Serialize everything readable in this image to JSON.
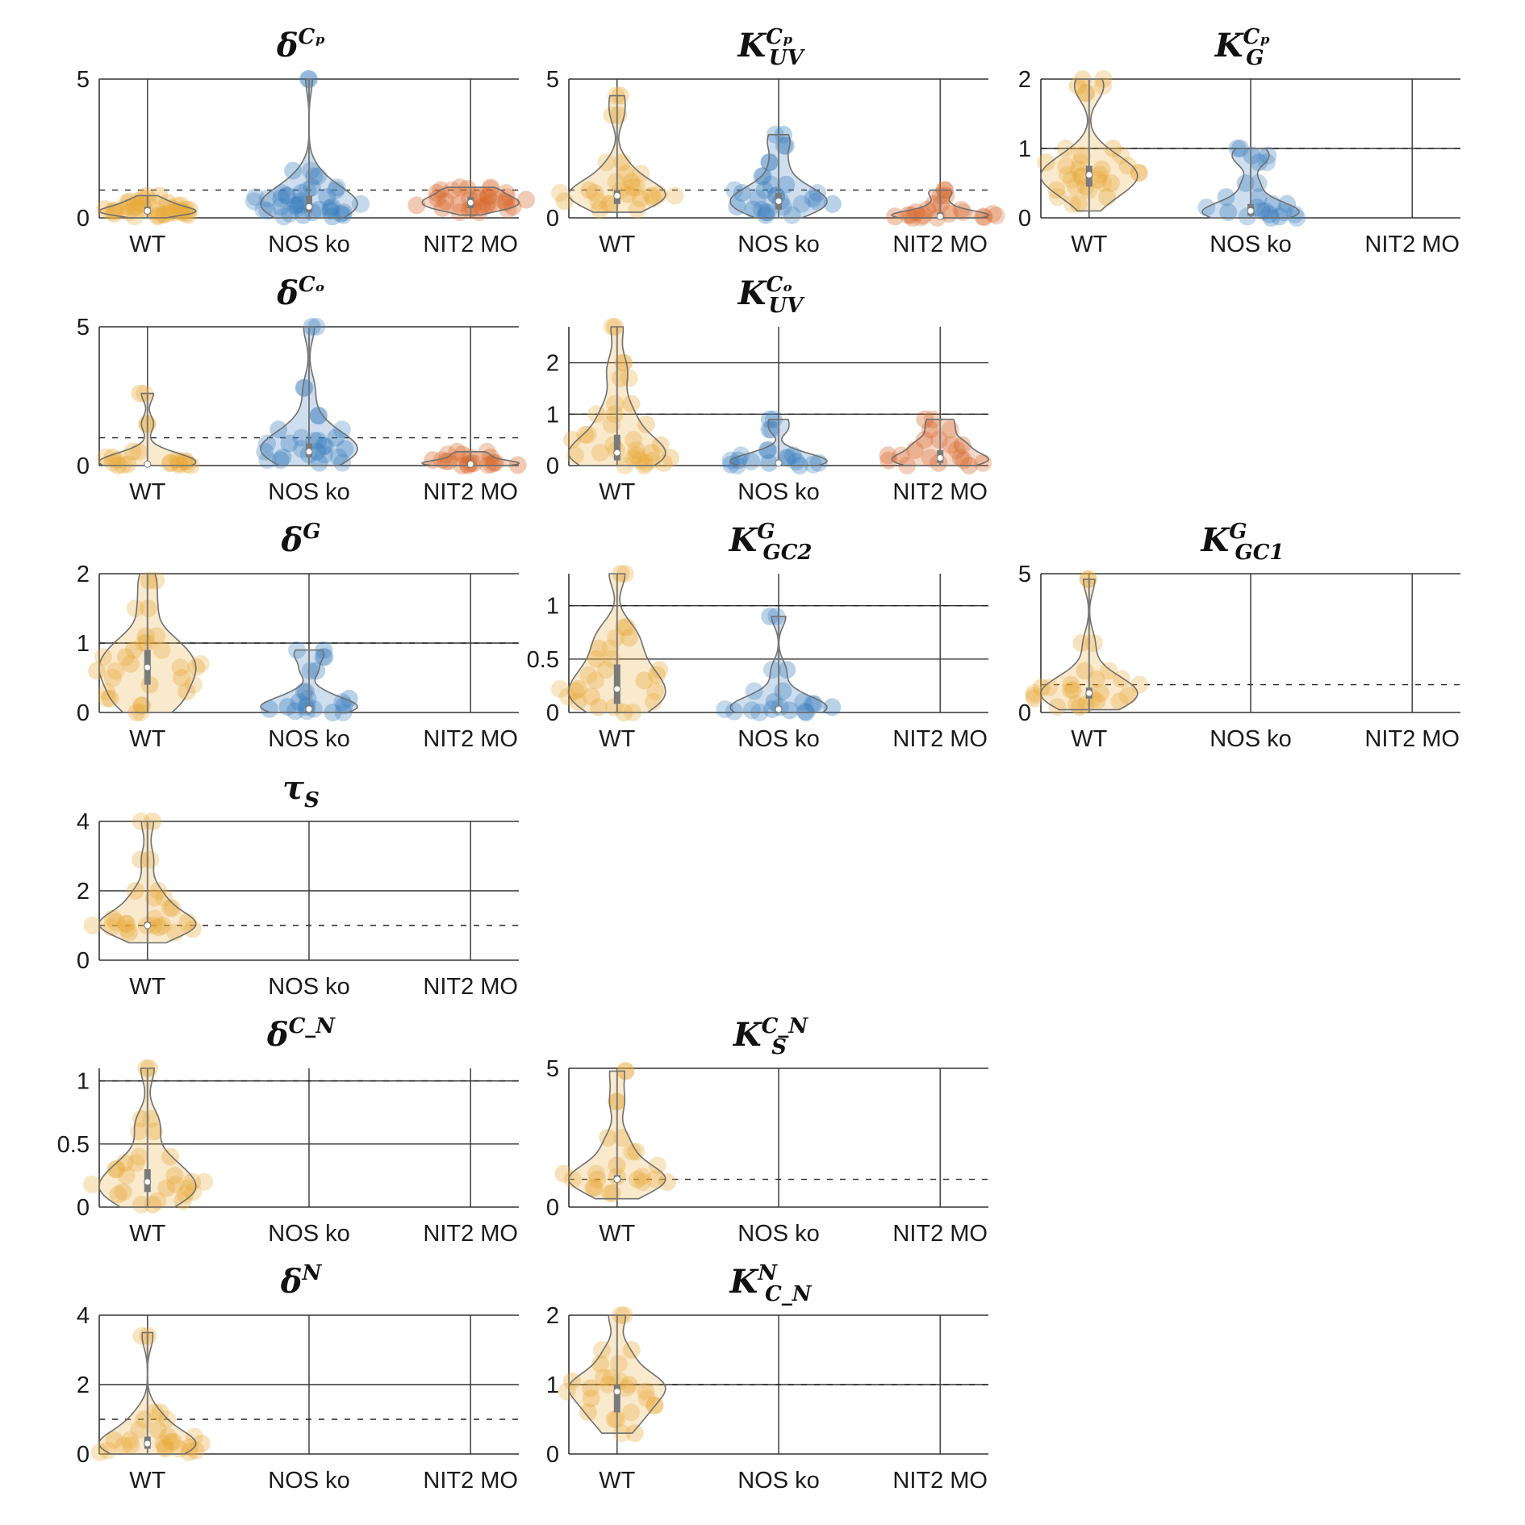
{
  "colors": {
    "WT": "#e8a838",
    "NOS ko": "#3a7dbd",
    "NIT2 MO": "#d8662b",
    "violin_edge": "#707070",
    "grid": "#333333"
  },
  "chart_data": [
    {
      "type": "violin",
      "title": {
        "base": "δ",
        "sup": "Cₚ",
        "sub": ""
      },
      "categories": [
        "WT",
        "NOS ko",
        "NIT2 MO"
      ],
      "yticks": [
        0,
        5
      ],
      "ylim": [
        0,
        5
      ],
      "ref_line": 1,
      "groups": [
        {
          "category": "WT",
          "median": 0.25,
          "q1": 0.15,
          "q3": 0.4,
          "min": 0.0,
          "max": 0.8,
          "points": [
            0.05,
            0.1,
            0.12,
            0.15,
            0.18,
            0.2,
            0.22,
            0.25,
            0.28,
            0.3,
            0.32,
            0.35,
            0.4,
            0.45,
            0.5,
            0.55,
            0.6,
            0.7,
            0.8
          ]
        },
        {
          "category": "NOS ko",
          "median": 0.4,
          "q1": 0.2,
          "q3": 0.8,
          "min": 0.0,
          "max": 5.0,
          "points": [
            0.05,
            0.1,
            0.15,
            0.2,
            0.25,
            0.3,
            0.35,
            0.4,
            0.45,
            0.5,
            0.6,
            0.7,
            0.75,
            0.8,
            0.9,
            1.0,
            1.1,
            1.5,
            1.7,
            5.0
          ]
        },
        {
          "category": "NIT2 MO",
          "median": 0.55,
          "q1": 0.35,
          "q3": 0.75,
          "min": 0.1,
          "max": 1.1,
          "points": [
            0.2,
            0.3,
            0.35,
            0.4,
            0.45,
            0.5,
            0.55,
            0.6,
            0.65,
            0.7,
            0.75,
            0.8,
            0.9,
            1.0,
            1.05,
            1.1
          ]
        }
      ]
    },
    {
      "type": "violin",
      "title": {
        "base": "K",
        "sup": "Cₚ",
        "sub": "UV"
      },
      "categories": [
        "WT",
        "NOS ko",
        "NIT2 MO"
      ],
      "yticks": [
        0,
        5
      ],
      "ylim": [
        0,
        5
      ],
      "ref_line": 1,
      "groups": [
        {
          "category": "WT",
          "median": 0.8,
          "q1": 0.5,
          "q3": 1.0,
          "min": 0.2,
          "max": 4.4,
          "points": [
            0.3,
            0.5,
            0.6,
            0.7,
            0.8,
            0.85,
            0.9,
            1.0,
            1.1,
            1.3,
            1.6,
            2.0,
            3.7,
            4.4
          ]
        },
        {
          "category": "NOS ko",
          "median": 0.6,
          "q1": 0.3,
          "q3": 0.9,
          "min": 0.0,
          "max": 3.0,
          "points": [
            0.1,
            0.2,
            0.3,
            0.4,
            0.5,
            0.6,
            0.7,
            0.8,
            0.9,
            1.0,
            1.2,
            1.5,
            2.0,
            2.6,
            3.0
          ]
        },
        {
          "category": "NIT2 MO",
          "median": 0.05,
          "q1": 0.0,
          "q3": 0.2,
          "min": 0.0,
          "max": 1.0,
          "points": [
            0.0,
            0.02,
            0.05,
            0.08,
            0.1,
            0.15,
            0.2,
            0.3,
            0.5,
            0.8,
            1.0
          ]
        }
      ]
    },
    {
      "type": "violin",
      "title": {
        "base": "K",
        "sup": "Cₚ",
        "sub": "G"
      },
      "categories": [
        "WT",
        "NOS ko",
        "NIT2 MO"
      ],
      "yticks": [
        0,
        1,
        2
      ],
      "ylim": [
        0,
        2
      ],
      "ref_line": 1,
      "groups": [
        {
          "category": "WT",
          "median": 0.62,
          "q1": 0.45,
          "q3": 0.75,
          "min": 0.1,
          "max": 2.0,
          "points": [
            0.2,
            0.3,
            0.4,
            0.45,
            0.5,
            0.55,
            0.6,
            0.62,
            0.65,
            0.7,
            0.75,
            0.8,
            0.9,
            1.0,
            1.8,
            1.9,
            2.0
          ]
        },
        {
          "category": "NOS ko",
          "median": 0.1,
          "q1": 0.03,
          "q3": 0.2,
          "min": 0.0,
          "max": 1.0,
          "points": [
            0.0,
            0.02,
            0.05,
            0.08,
            0.1,
            0.15,
            0.2,
            0.3,
            0.5,
            0.8,
            0.9,
            1.0
          ]
        }
      ]
    },
    {
      "type": "violin",
      "title": {
        "base": "δ",
        "sup": "Cₒ",
        "sub": ""
      },
      "categories": [
        "WT",
        "NOS ko",
        "NIT2 MO"
      ],
      "yticks": [
        0,
        5
      ],
      "ylim": [
        0,
        5
      ],
      "ref_line": 1,
      "groups": [
        {
          "category": "WT",
          "median": 0.05,
          "q1": 0.0,
          "q3": 0.1,
          "min": 0.0,
          "max": 2.6,
          "points": [
            0.0,
            0.02,
            0.05,
            0.08,
            0.1,
            0.15,
            0.2,
            0.3,
            0.5,
            1.5,
            2.6
          ]
        },
        {
          "category": "NOS ko",
          "median": 0.5,
          "q1": 0.3,
          "q3": 0.8,
          "min": 0.0,
          "max": 5.0,
          "points": [
            0.1,
            0.2,
            0.3,
            0.4,
            0.5,
            0.6,
            0.7,
            0.8,
            0.9,
            1.0,
            1.3,
            1.8,
            2.8,
            5.0
          ]
        },
        {
          "category": "NIT2 MO",
          "median": 0.05,
          "q1": 0.0,
          "q3": 0.1,
          "min": 0.0,
          "max": 0.5,
          "points": [
            0.0,
            0.02,
            0.05,
            0.08,
            0.1,
            0.15,
            0.2,
            0.3,
            0.4,
            0.5
          ]
        }
      ]
    },
    {
      "type": "violin",
      "title": {
        "base": "K",
        "sup": "Cₒ",
        "sub": "UV"
      },
      "categories": [
        "WT",
        "NOS ko",
        "NIT2 MO"
      ],
      "yticks": [
        0,
        1,
        2
      ],
      "ylim": [
        0,
        2.7
      ],
      "ref_line": 1,
      "groups": [
        {
          "category": "WT",
          "median": 0.25,
          "q1": 0.1,
          "q3": 0.6,
          "min": 0.0,
          "max": 2.7,
          "points": [
            0.0,
            0.05,
            0.1,
            0.15,
            0.2,
            0.25,
            0.3,
            0.4,
            0.5,
            0.6,
            0.8,
            1.0,
            1.2,
            1.7,
            2.0,
            2.7
          ]
        },
        {
          "category": "NOS ko",
          "median": 0.05,
          "q1": 0.0,
          "q3": 0.1,
          "min": 0.0,
          "max": 0.9,
          "points": [
            0.0,
            0.02,
            0.05,
            0.08,
            0.1,
            0.15,
            0.2,
            0.3,
            0.7,
            0.9
          ]
        },
        {
          "category": "NIT2 MO",
          "median": 0.15,
          "q1": 0.05,
          "q3": 0.3,
          "min": 0.0,
          "max": 0.9,
          "points": [
            0.0,
            0.05,
            0.1,
            0.15,
            0.2,
            0.3,
            0.4,
            0.5,
            0.7,
            0.9
          ]
        }
      ]
    },
    {
      "type": "violin",
      "title": {
        "base": "δ",
        "sup": "G",
        "sub": ""
      },
      "categories": [
        "WT",
        "NOS ko",
        "NIT2 MO"
      ],
      "yticks": [
        0,
        1,
        2
      ],
      "ylim": [
        0,
        2
      ],
      "ref_line": 1,
      "groups": [
        {
          "category": "WT",
          "median": 0.65,
          "q1": 0.4,
          "q3": 0.9,
          "min": 0.0,
          "max": 2.0,
          "points": [
            0.0,
            0.1,
            0.2,
            0.3,
            0.4,
            0.5,
            0.6,
            0.65,
            0.7,
            0.8,
            0.9,
            1.0,
            1.1,
            1.5,
            1.9
          ]
        },
        {
          "category": "NOS ko",
          "median": 0.05,
          "q1": 0.0,
          "q3": 0.1,
          "min": 0.0,
          "max": 0.9,
          "points": [
            0.0,
            0.02,
            0.05,
            0.08,
            0.1,
            0.15,
            0.2,
            0.3,
            0.6,
            0.8,
            0.9
          ]
        }
      ]
    },
    {
      "type": "violin",
      "title": {
        "base": "K",
        "sup": "G",
        "sub": "GC2"
      },
      "categories": [
        "WT",
        "NOS ko",
        "NIT2 MO"
      ],
      "yticks": [
        0,
        0.5,
        1
      ],
      "ylim": [
        0,
        1.3
      ],
      "ref_line": 1,
      "groups": [
        {
          "category": "WT",
          "median": 0.22,
          "q1": 0.08,
          "q3": 0.45,
          "min": 0.0,
          "max": 1.3,
          "points": [
            0.0,
            0.05,
            0.1,
            0.15,
            0.2,
            0.22,
            0.3,
            0.35,
            0.4,
            0.5,
            0.6,
            0.7,
            0.8,
            1.3
          ]
        },
        {
          "category": "NOS ko",
          "median": 0.03,
          "q1": 0.0,
          "q3": 0.06,
          "min": 0.0,
          "max": 0.9,
          "points": [
            0.0,
            0.01,
            0.02,
            0.03,
            0.05,
            0.08,
            0.1,
            0.2,
            0.4,
            0.9
          ]
        }
      ]
    },
    {
      "type": "violin",
      "title": {
        "base": "K",
        "sup": "G",
        "sub": "GC1"
      },
      "categories": [
        "WT",
        "NOS ko",
        "NIT2 MO"
      ],
      "yticks": [
        0,
        5
      ],
      "ylim": [
        0,
        5
      ],
      "ref_line": 1,
      "groups": [
        {
          "category": "WT",
          "median": 0.7,
          "q1": 0.5,
          "q3": 0.9,
          "min": 0.1,
          "max": 4.8,
          "points": [
            0.2,
            0.3,
            0.4,
            0.5,
            0.6,
            0.7,
            0.8,
            0.9,
            1.0,
            1.2,
            1.5,
            2.5,
            4.8
          ]
        }
      ]
    },
    {
      "type": "violin",
      "title": {
        "base": "τ",
        "sup": "",
        "sub": "S"
      },
      "categories": [
        "WT",
        "NOS ko",
        "NIT2 MO"
      ],
      "yticks": [
        0,
        2,
        4
      ],
      "ylim": [
        0,
        4
      ],
      "ref_line": 1,
      "groups": [
        {
          "category": "WT",
          "median": 1.0,
          "q1": 0.95,
          "q3": 1.1,
          "min": 0.5,
          "max": 4.0,
          "points": [
            0.8,
            0.9,
            0.95,
            1.0,
            1.0,
            1.05,
            1.1,
            1.2,
            1.5,
            1.8,
            2.0,
            2.9,
            4.0
          ]
        }
      ]
    },
    {
      "type": "violin",
      "title": {
        "base": "δ",
        "sup": "C_N",
        "sub": ""
      },
      "categories": [
        "WT",
        "NOS ko",
        "NIT2 MO"
      ],
      "yticks": [
        0,
        0.5,
        1
      ],
      "ylim": [
        0,
        1.1
      ],
      "ref_line": 1,
      "groups": [
        {
          "category": "WT",
          "median": 0.2,
          "q1": 0.12,
          "q3": 0.3,
          "min": 0.0,
          "max": 1.1,
          "points": [
            0.02,
            0.05,
            0.1,
            0.12,
            0.15,
            0.18,
            0.2,
            0.25,
            0.3,
            0.35,
            0.4,
            0.6,
            0.7,
            1.1
          ]
        }
      ]
    },
    {
      "type": "violin",
      "title": {
        "base": "K",
        "sup": "C_N",
        "sub": "S"
      },
      "categories": [
        "WT",
        "NOS ko",
        "NIT2 MO"
      ],
      "yticks": [
        0,
        5
      ],
      "ylim": [
        0,
        5
      ],
      "ref_line": 1,
      "groups": [
        {
          "category": "WT",
          "median": 1.0,
          "q1": 0.9,
          "q3": 1.15,
          "min": 0.3,
          "max": 4.9,
          "points": [
            0.5,
            0.7,
            0.9,
            1.0,
            1.0,
            1.1,
            1.2,
            1.5,
            2.0,
            2.5,
            3.8,
            4.9
          ]
        }
      ]
    },
    {
      "type": "violin",
      "title": {
        "base": "δ",
        "sup": "N",
        "sub": ""
      },
      "categories": [
        "WT",
        "NOS ko",
        "NIT2 MO"
      ],
      "yticks": [
        0,
        2,
        4
      ],
      "ylim": [
        0,
        4
      ],
      "ref_line": 1,
      "groups": [
        {
          "category": "WT",
          "median": 0.3,
          "q1": 0.15,
          "q3": 0.5,
          "min": 0.0,
          "max": 3.5,
          "points": [
            0.05,
            0.1,
            0.15,
            0.2,
            0.25,
            0.3,
            0.35,
            0.4,
            0.5,
            0.7,
            1.0,
            1.2,
            3.4
          ]
        }
      ]
    },
    {
      "type": "violin",
      "title": {
        "base": "K",
        "sup": "N",
        "sub": "C_N"
      },
      "categories": [
        "WT",
        "NOS ko",
        "NIT2 MO"
      ],
      "yticks": [
        0,
        1,
        2
      ],
      "ylim": [
        0,
        2
      ],
      "ref_line": 1,
      "groups": [
        {
          "category": "WT",
          "median": 0.9,
          "q1": 0.6,
          "q3": 1.0,
          "min": 0.3,
          "max": 2.0,
          "points": [
            0.3,
            0.5,
            0.6,
            0.7,
            0.8,
            0.9,
            0.95,
            1.0,
            1.05,
            1.1,
            1.3,
            1.5,
            2.0
          ]
        }
      ]
    }
  ]
}
